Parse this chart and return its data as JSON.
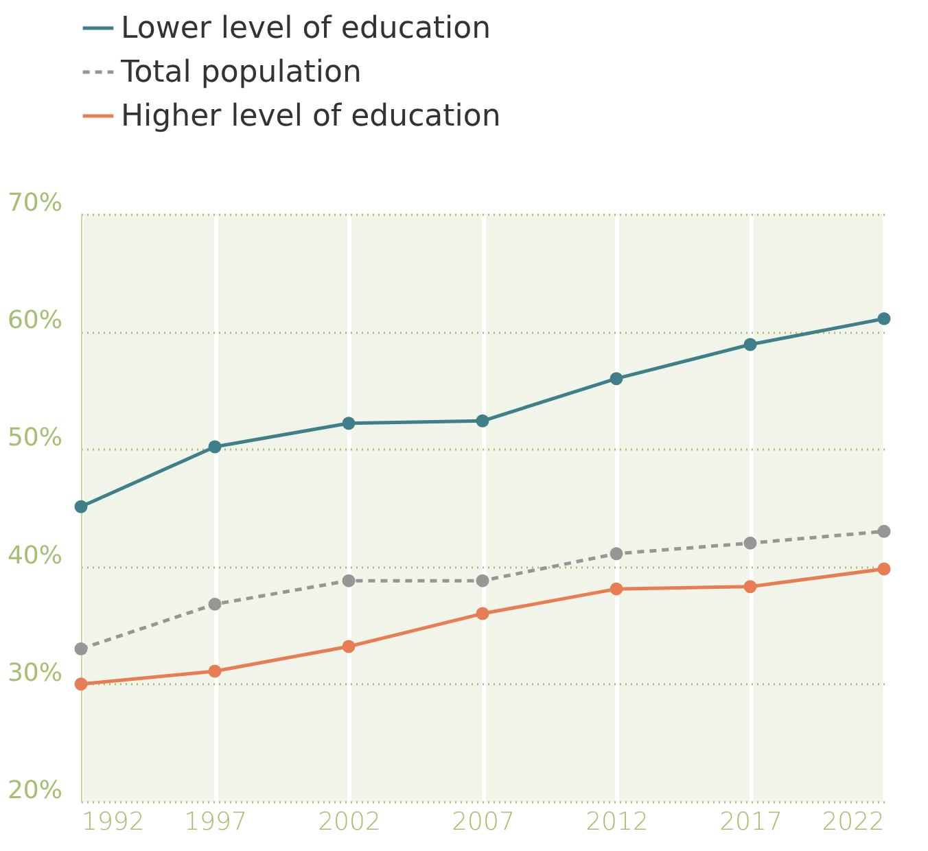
{
  "chart_data": {
    "type": "line",
    "x": [
      1992,
      1997,
      2002,
      2007,
      2012,
      2017,
      2022
    ],
    "series": [
      {
        "name": "Lower level of education",
        "color": "#3e7f8a",
        "line_style": "solid",
        "values": [
          45.1,
          50.2,
          52.2,
          52.4,
          56,
          58.9,
          61.1
        ]
      },
      {
        "name": "Total population",
        "color": "#969696",
        "line_style": "dashed",
        "values": [
          33,
          36.8,
          38.8,
          38.8,
          41.1,
          42,
          43
        ]
      },
      {
        "name": "Higher level of education",
        "color": "#e87c53",
        "line_style": "solid",
        "values": [
          30,
          31.1,
          33.2,
          36,
          38.1,
          38.3,
          39.8
        ]
      }
    ],
    "xlim": [
      1992,
      2022
    ],
    "xticks": [
      1992,
      1997,
      2002,
      2007,
      2012,
      2017,
      2022
    ],
    "ylim": [
      20,
      70
    ],
    "yticks": [
      {
        "value": 20,
        "label": "20%"
      },
      {
        "value": 30,
        "label": "30%"
      },
      {
        "value": 40,
        "label": "40%"
      },
      {
        "value": 50,
        "label": "50%"
      },
      {
        "value": 60,
        "label": "60%"
      },
      {
        "value": 70,
        "label": "70%"
      }
    ],
    "grid": true,
    "legend": "top left",
    "marker": "circle"
  }
}
